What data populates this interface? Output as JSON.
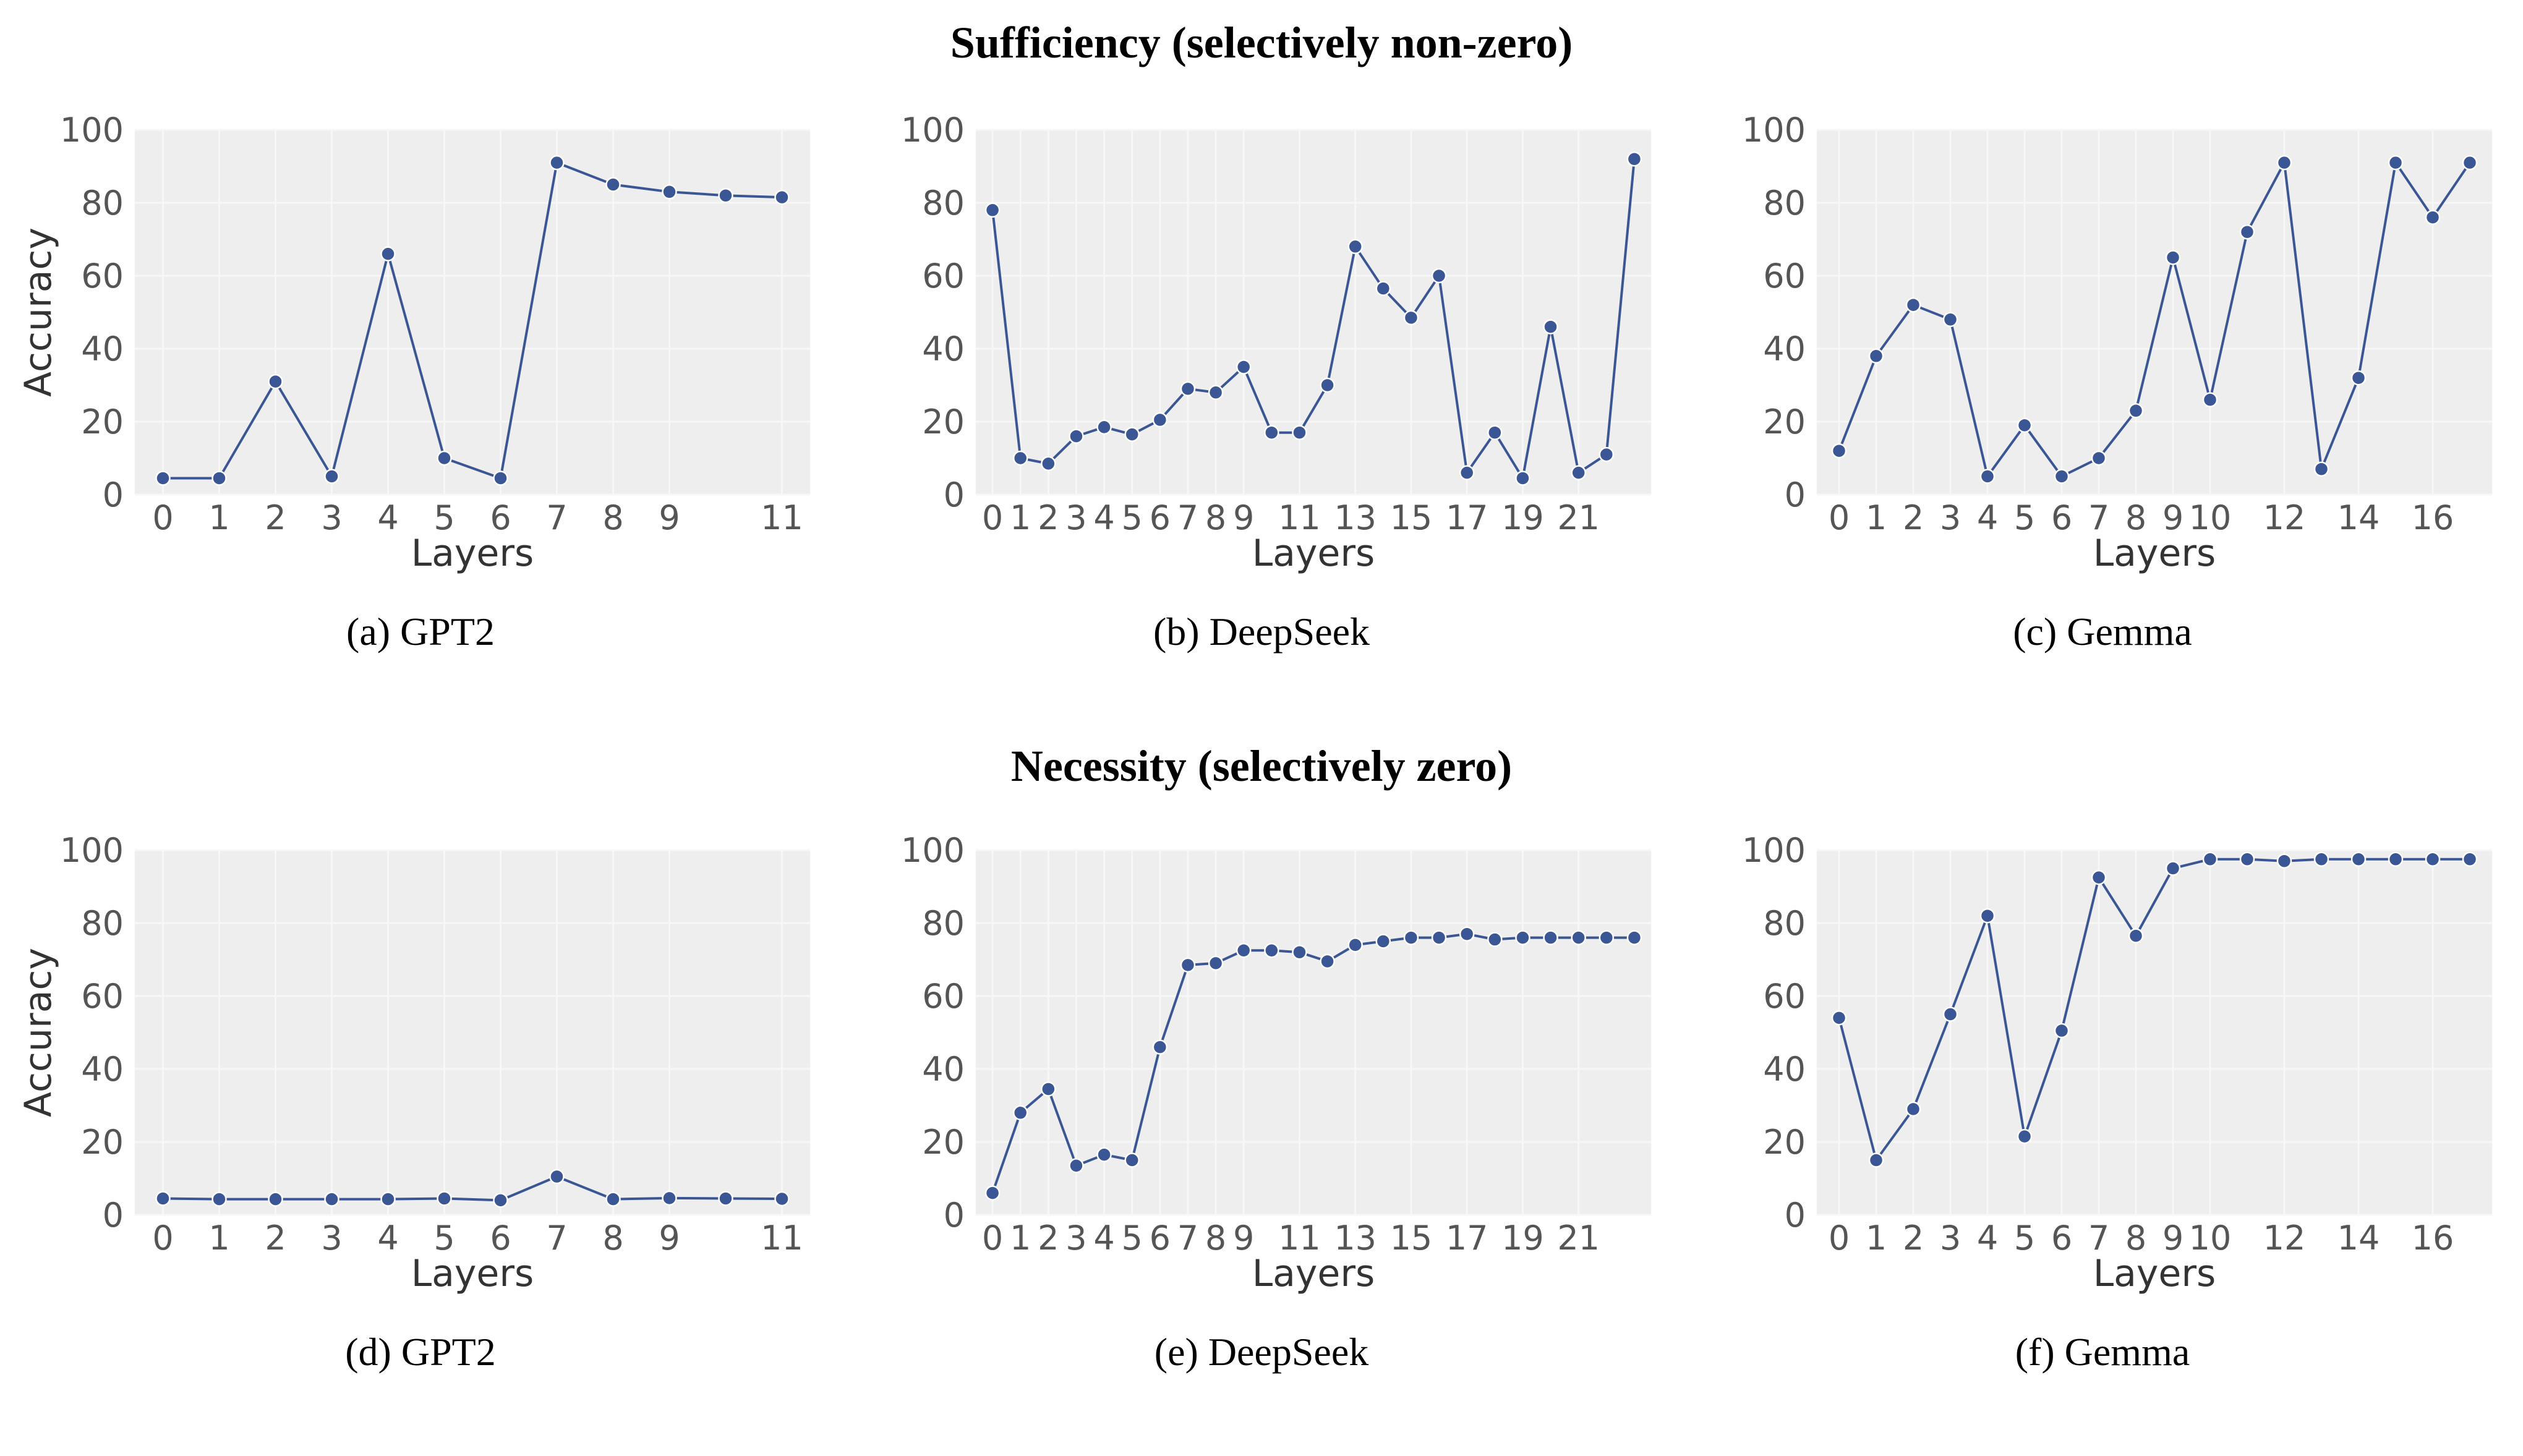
{
  "section_titles": {
    "top": "Sufficiency (selectively non-zero)",
    "bottom": "Necessity (selectively zero)"
  },
  "colors": {
    "line": "#3a5694",
    "marker": "#3a5694",
    "marker_edge": "#ffffff",
    "plot_bg": "#eeeeee",
    "grid": "#f7f7f7"
  },
  "chart_data": [
    {
      "type": "line",
      "caption": "(a) GPT2",
      "xlabel": "Layers",
      "ylabel": "Accuracy",
      "xlim": [
        -0.5,
        11.5
      ],
      "ylim": [
        0,
        100
      ],
      "xticks": [
        0,
        1,
        2,
        3,
        4,
        5,
        6,
        7,
        8,
        9,
        11
      ],
      "yticks": [
        0,
        20,
        40,
        60,
        80,
        100
      ],
      "x": [
        0,
        1,
        2,
        3,
        4,
        5,
        6,
        7,
        8,
        9,
        10,
        11
      ],
      "y": [
        4.5,
        4.5,
        31,
        5,
        66,
        10,
        4.5,
        91,
        85,
        83,
        82,
        81.5
      ]
    },
    {
      "type": "line",
      "caption": "(b) DeepSeek",
      "xlabel": "Layers",
      "ylabel": "",
      "xlim": [
        -0.6,
        23.6
      ],
      "ylim": [
        0,
        100
      ],
      "xticks": [
        0,
        1,
        2,
        3,
        4,
        5,
        6,
        7,
        8,
        9,
        11,
        13,
        15,
        17,
        19,
        21
      ],
      "yticks": [
        0,
        20,
        40,
        60,
        80,
        100
      ],
      "x": [
        0,
        1,
        2,
        3,
        4,
        5,
        6,
        7,
        8,
        9,
        10,
        11,
        12,
        13,
        14,
        15,
        16,
        17,
        18,
        19,
        20,
        21,
        22,
        23
      ],
      "y": [
        78,
        10,
        8.5,
        16,
        18.5,
        16.5,
        20.5,
        29,
        28,
        35,
        17,
        17,
        30,
        68,
        56.5,
        48.5,
        60,
        6,
        17,
        4.5,
        46,
        6,
        11,
        92
      ]
    },
    {
      "type": "line",
      "caption": "(c) Gemma",
      "xlabel": "Layers",
      "ylabel": "",
      "xlim": [
        -0.6,
        17.6
      ],
      "ylim": [
        0,
        100
      ],
      "xticks": [
        0,
        1,
        2,
        3,
        4,
        5,
        6,
        7,
        8,
        9,
        10,
        12,
        14,
        16
      ],
      "yticks": [
        0,
        20,
        40,
        60,
        80,
        100
      ],
      "x": [
        0,
        1,
        2,
        3,
        4,
        5,
        6,
        7,
        8,
        9,
        10,
        11,
        12,
        13,
        14,
        15,
        16,
        17
      ],
      "y": [
        12,
        38,
        52,
        48,
        5,
        19,
        5,
        10,
        23,
        65,
        26,
        72,
        91,
        7,
        32,
        91,
        76,
        91
      ]
    },
    {
      "type": "line",
      "caption": "(d) GPT2",
      "xlabel": "Layers",
      "ylabel": "Accuracy",
      "xlim": [
        -0.5,
        11.5
      ],
      "ylim": [
        0,
        100
      ],
      "xticks": [
        0,
        1,
        2,
        3,
        4,
        5,
        6,
        7,
        8,
        9,
        11
      ],
      "yticks": [
        0,
        20,
        40,
        60,
        80,
        100
      ],
      "x": [
        0,
        1,
        2,
        3,
        4,
        5,
        6,
        7,
        8,
        9,
        10,
        11
      ],
      "y": [
        4.5,
        4.3,
        4.3,
        4.3,
        4.3,
        4.5,
        4.0,
        10.5,
        4.3,
        4.6,
        4.5,
        4.4
      ]
    },
    {
      "type": "line",
      "caption": "(e) DeepSeek",
      "xlabel": "Layers",
      "ylabel": "",
      "xlim": [
        -0.6,
        23.6
      ],
      "ylim": [
        0,
        100
      ],
      "xticks": [
        0,
        1,
        2,
        3,
        4,
        5,
        6,
        7,
        8,
        9,
        11,
        13,
        15,
        17,
        19,
        21
      ],
      "yticks": [
        0,
        20,
        40,
        60,
        80,
        100
      ],
      "x": [
        0,
        1,
        2,
        3,
        4,
        5,
        6,
        7,
        8,
        9,
        10,
        11,
        12,
        13,
        14,
        15,
        16,
        17,
        18,
        19,
        20,
        21,
        22,
        23
      ],
      "y": [
        6,
        28,
        34.5,
        13.5,
        16.5,
        15,
        46,
        68.5,
        69,
        72.5,
        72.5,
        72,
        69.5,
        74,
        75,
        76,
        76,
        77,
        75.5,
        76,
        76,
        76,
        76,
        76
      ]
    },
    {
      "type": "line",
      "caption": "(f) Gemma",
      "xlabel": "Layers",
      "ylabel": "",
      "xlim": [
        -0.6,
        17.6
      ],
      "ylim": [
        0,
        100
      ],
      "xticks": [
        0,
        1,
        2,
        3,
        4,
        5,
        6,
        7,
        8,
        9,
        10,
        12,
        14,
        16
      ],
      "yticks": [
        0,
        20,
        40,
        60,
        80,
        100
      ],
      "x": [
        0,
        1,
        2,
        3,
        4,
        5,
        6,
        7,
        8,
        9,
        10,
        11,
        12,
        13,
        14,
        15,
        16,
        17
      ],
      "y": [
        54,
        15,
        29,
        55,
        82,
        21.5,
        50.5,
        92.5,
        76.5,
        95,
        97.5,
        97.5,
        97,
        97.5,
        97.5,
        97.5,
        97.5,
        97.5
      ]
    }
  ]
}
